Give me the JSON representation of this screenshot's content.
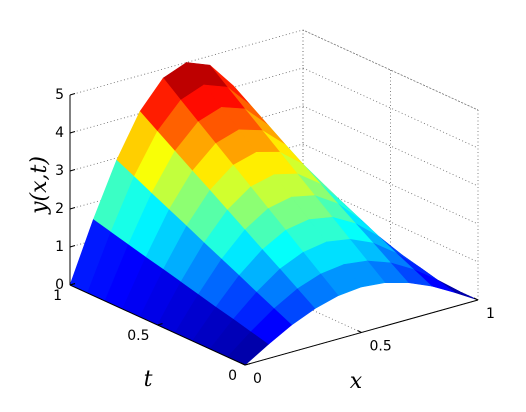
{
  "chart_data": {
    "type": "surface",
    "xlabel": "x",
    "tlabel": "t",
    "zlabel": "y(x,t)",
    "x": [
      0,
      0.1,
      0.2,
      0.3,
      0.4,
      0.5,
      0.6,
      0.7,
      0.8,
      0.9,
      1
    ],
    "t": [
      0,
      0.1,
      0.2,
      0.3,
      0.4,
      0.5,
      0.6,
      0.7,
      0.8,
      0.9,
      1
    ],
    "z": [
      [
        0,
        0.37,
        0.71,
        0.97,
        1.14,
        1.2,
        1.14,
        0.97,
        0.71,
        0.37,
        0
      ],
      [
        0,
        0.49,
        0.93,
        1.28,
        1.5,
        1.58,
        1.5,
        1.28,
        0.93,
        0.49,
        0
      ],
      [
        0,
        0.61,
        1.15,
        1.59,
        1.86,
        1.96,
        1.86,
        1.59,
        1.15,
        0.61,
        0
      ],
      [
        0,
        0.72,
        1.38,
        1.89,
        2.23,
        2.34,
        2.23,
        1.89,
        1.38,
        0.72,
        0
      ],
      [
        0,
        0.84,
        1.6,
        2.2,
        2.59,
        2.72,
        2.59,
        2.2,
        1.6,
        0.84,
        0
      ],
      [
        0,
        0.96,
        1.82,
        2.51,
        2.95,
        3.1,
        2.95,
        2.51,
        1.82,
        0.96,
        0
      ],
      [
        0,
        1.08,
        2.05,
        2.82,
        3.31,
        3.48,
        3.31,
        2.82,
        2.05,
        1.08,
        0
      ],
      [
        0,
        1.19,
        2.27,
        3.12,
        3.67,
        3.86,
        3.67,
        3.12,
        2.27,
        1.19,
        0
      ],
      [
        0,
        1.31,
        2.49,
        3.43,
        4.03,
        4.24,
        4.03,
        3.43,
        2.49,
        1.31,
        0
      ],
      [
        0,
        1.43,
        2.72,
        3.74,
        4.39,
        4.62,
        4.39,
        3.74,
        2.72,
        1.43,
        0
      ],
      [
        0,
        1.55,
        2.94,
        4.05,
        4.76,
        5,
        4.76,
        4.05,
        2.94,
        1.55,
        0
      ]
    ],
    "xlim": [
      0,
      1
    ],
    "tlim": [
      0,
      1
    ],
    "zlim": [
      0,
      5
    ],
    "xticks": [
      0,
      0.5,
      1
    ],
    "tticks": [
      0,
      0.5,
      1
    ],
    "zticks": [
      0,
      1,
      2,
      3,
      4,
      5
    ],
    "colormap": "jet",
    "grid": true
  }
}
